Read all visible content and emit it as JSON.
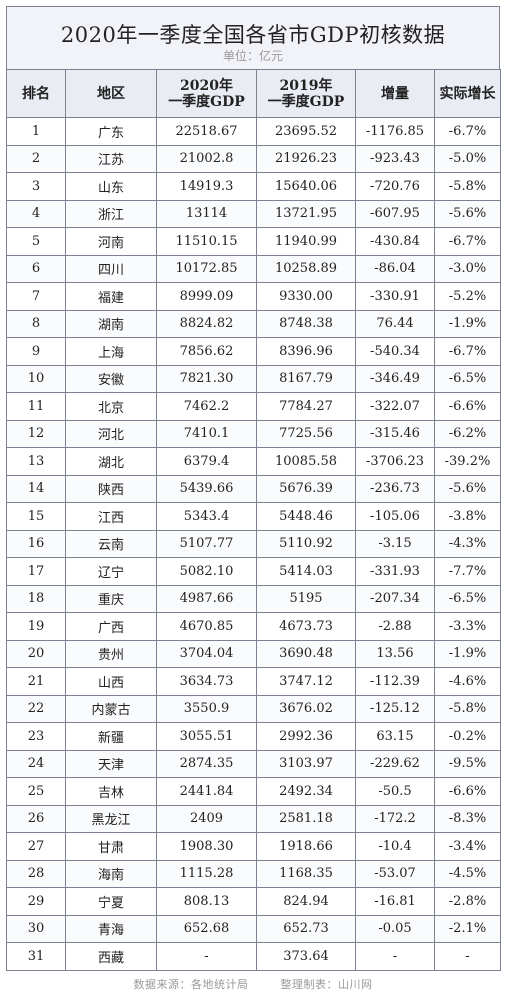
{
  "title": "2020年一季度全国各省市GDP初核数据",
  "unit": "单位：亿元",
  "headers": {
    "rank": "排名",
    "region": "地区",
    "gdp2020": [
      "2020年",
      "一季度GDP"
    ],
    "gdp2019": [
      "2019年",
      "一季度GDP"
    ],
    "change": "增量",
    "growth": "实际增长"
  },
  "rows": [
    {
      "rank": "1",
      "region": "广东",
      "gdp2020": "22518.67",
      "gdp2019": "23695.52",
      "change": "-1176.85",
      "growth": "-6.7%"
    },
    {
      "rank": "2",
      "region": "江苏",
      "gdp2020": "21002.8",
      "gdp2019": "21926.23",
      "change": "-923.43",
      "growth": "-5.0%"
    },
    {
      "rank": "3",
      "region": "山东",
      "gdp2020": "14919.3",
      "gdp2019": "15640.06",
      "change": "-720.76",
      "growth": "-5.8%"
    },
    {
      "rank": "4",
      "region": "浙江",
      "gdp2020": "13114",
      "gdp2019": "13721.95",
      "change": "-607.95",
      "growth": "-5.6%"
    },
    {
      "rank": "5",
      "region": "河南",
      "gdp2020": "11510.15",
      "gdp2019": "11940.99",
      "change": "-430.84",
      "growth": "-6.7%"
    },
    {
      "rank": "6",
      "region": "四川",
      "gdp2020": "10172.85",
      "gdp2019": "10258.89",
      "change": "-86.04",
      "growth": "-3.0%"
    },
    {
      "rank": "7",
      "region": "福建",
      "gdp2020": "8999.09",
      "gdp2019": "9330.00",
      "change": "-330.91",
      "growth": "-5.2%"
    },
    {
      "rank": "8",
      "region": "湖南",
      "gdp2020": "8824.82",
      "gdp2019": "8748.38",
      "change": "76.44",
      "growth": "-1.9%"
    },
    {
      "rank": "9",
      "region": "上海",
      "gdp2020": "7856.62",
      "gdp2019": "8396.96",
      "change": "-540.34",
      "growth": "-6.7%"
    },
    {
      "rank": "10",
      "region": "安徽",
      "gdp2020": "7821.30",
      "gdp2019": "8167.79",
      "change": "-346.49",
      "growth": "-6.5%"
    },
    {
      "rank": "11",
      "region": "北京",
      "gdp2020": "7462.2",
      "gdp2019": "7784.27",
      "change": "-322.07",
      "growth": "-6.6%"
    },
    {
      "rank": "12",
      "region": "河北",
      "gdp2020": "7410.1",
      "gdp2019": "7725.56",
      "change": "-315.46",
      "growth": "-6.2%"
    },
    {
      "rank": "13",
      "region": "湖北",
      "gdp2020": "6379.4",
      "gdp2019": "10085.58",
      "change": "-3706.23",
      "growth": "-39.2%"
    },
    {
      "rank": "14",
      "region": "陕西",
      "gdp2020": "5439.66",
      "gdp2019": "5676.39",
      "change": "-236.73",
      "growth": "-5.6%"
    },
    {
      "rank": "15",
      "region": "江西",
      "gdp2020": "5343.4",
      "gdp2019": "5448.46",
      "change": "-105.06",
      "growth": "-3.8%"
    },
    {
      "rank": "16",
      "region": "云南",
      "gdp2020": "5107.77",
      "gdp2019": "5110.92",
      "change": "-3.15",
      "growth": "-4.3%"
    },
    {
      "rank": "17",
      "region": "辽宁",
      "gdp2020": "5082.10",
      "gdp2019": "5414.03",
      "change": "-331.93",
      "growth": "-7.7%"
    },
    {
      "rank": "18",
      "region": "重庆",
      "gdp2020": "4987.66",
      "gdp2019": "5195",
      "change": "-207.34",
      "growth": "-6.5%"
    },
    {
      "rank": "19",
      "region": "广西",
      "gdp2020": "4670.85",
      "gdp2019": "4673.73",
      "change": "-2.88",
      "growth": "-3.3%"
    },
    {
      "rank": "20",
      "region": "贵州",
      "gdp2020": "3704.04",
      "gdp2019": "3690.48",
      "change": "13.56",
      "growth": "-1.9%"
    },
    {
      "rank": "21",
      "region": "山西",
      "gdp2020": "3634.73",
      "gdp2019": "3747.12",
      "change": "-112.39",
      "growth": "-4.6%"
    },
    {
      "rank": "22",
      "region": "内蒙古",
      "gdp2020": "3550.9",
      "gdp2019": "3676.02",
      "change": "-125.12",
      "growth": "-5.8%"
    },
    {
      "rank": "23",
      "region": "新疆",
      "gdp2020": "3055.51",
      "gdp2019": "2992.36",
      "change": "63.15",
      "growth": "-0.2%"
    },
    {
      "rank": "24",
      "region": "天津",
      "gdp2020": "2874.35",
      "gdp2019": "3103.97",
      "change": "-229.62",
      "growth": "-9.5%"
    },
    {
      "rank": "25",
      "region": "吉林",
      "gdp2020": "2441.84",
      "gdp2019": "2492.34",
      "change": "-50.5",
      "growth": "-6.6%"
    },
    {
      "rank": "26",
      "region": "黑龙江",
      "gdp2020": "2409",
      "gdp2019": "2581.18",
      "change": "-172.2",
      "growth": "-8.3%"
    },
    {
      "rank": "27",
      "region": "甘肃",
      "gdp2020": "1908.30",
      "gdp2019": "1918.66",
      "change": "-10.4",
      "growth": "-3.4%"
    },
    {
      "rank": "28",
      "region": "海南",
      "gdp2020": "1115.28",
      "gdp2019": "1168.35",
      "change": "-53.07",
      "growth": "-4.5%"
    },
    {
      "rank": "29",
      "region": "宁夏",
      "gdp2020": "808.13",
      "gdp2019": "824.94",
      "change": "-16.81",
      "growth": "-2.8%"
    },
    {
      "rank": "30",
      "region": "青海",
      "gdp2020": "652.68",
      "gdp2019": "652.73",
      "change": "-0.05",
      "growth": "-2.1%"
    },
    {
      "rank": "31",
      "region": "西藏",
      "gdp2020": "-",
      "gdp2019": "373.64",
      "change": "-",
      "growth": "-"
    }
  ],
  "footer": {
    "source": "数据来源：各地统计局",
    "maker": "整理制表：山川网"
  }
}
